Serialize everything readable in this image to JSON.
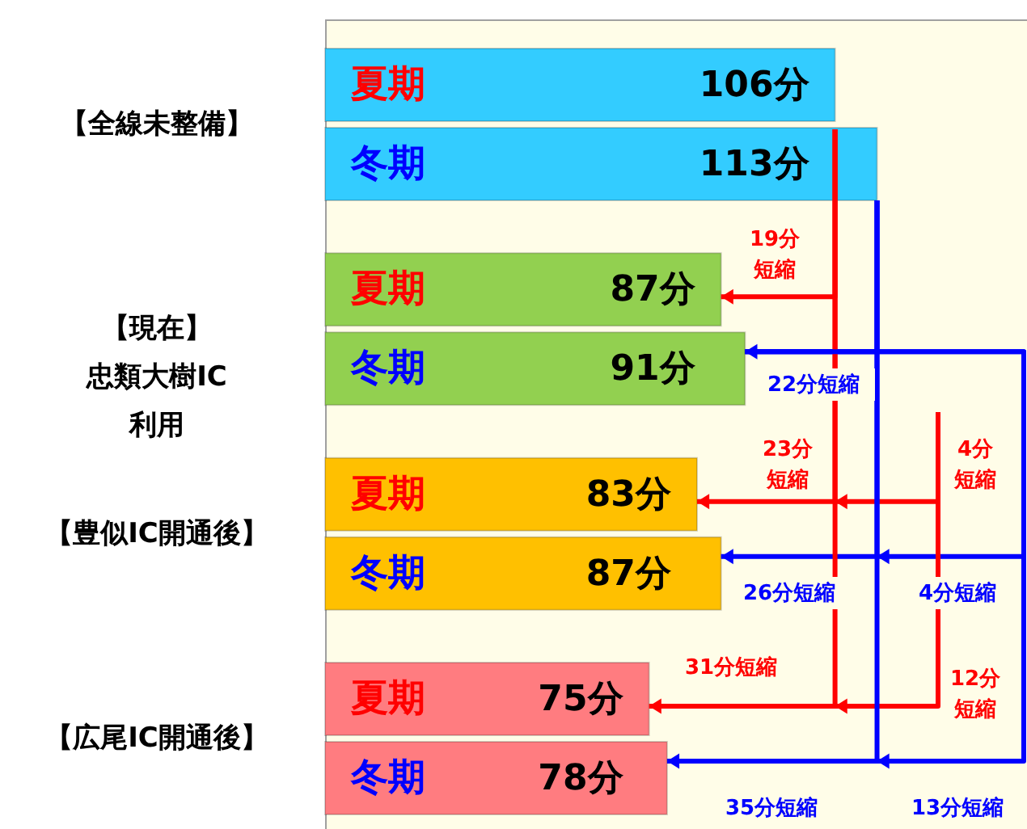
{
  "chart_data": {
    "type": "bar",
    "orientation": "horizontal",
    "tick_labels": "y",
    "xlim": [
      21,
      138
    ],
    "categories": [
      "【全線未整備】",
      "【現在】忠類大樹IC利用",
      "【豊似IC開通後】",
      "【広尾IC開通後】"
    ],
    "series": [
      {
        "name": "夏期",
        "values": [
          106,
          87,
          83,
          75
        ],
        "value_labels": [
          "106分",
          "87分",
          "83分",
          "75分"
        ],
        "colors": [
          "#33ccff",
          "#92d050",
          "#ffc000",
          "#ff7c80"
        ]
      },
      {
        "name": "冬期",
        "values": [
          113,
          91,
          87,
          78
        ],
        "value_labels": [
          "113分",
          "91分",
          "87分",
          "78分"
        ],
        "colors": [
          "#33ccff",
          "#92d050",
          "#ffc000",
          "#ff7c80"
        ]
      }
    ],
    "annotations": [
      "19分短縮",
      "22分短縮",
      "23分短縮",
      "4分短縮",
      "26分短縮",
      "4分短縮",
      "31分短縮",
      "12分短縮",
      "35分短縮",
      "13分短縮"
    ]
  }
}
